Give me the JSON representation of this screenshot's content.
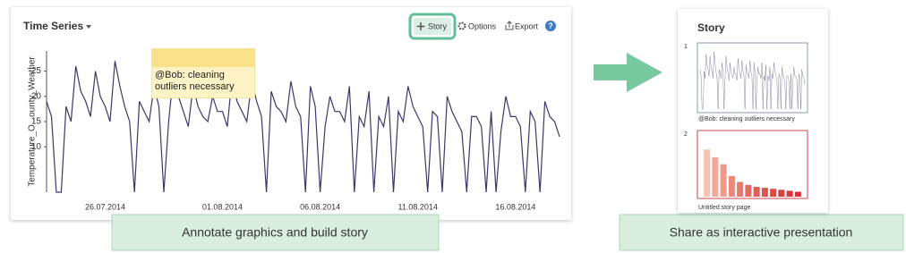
{
  "toolbar": {
    "story": "Story",
    "options": "Options",
    "export": "Export",
    "help": "?"
  },
  "chart_data": [
    {
      "type": "line",
      "title": "Time Series",
      "y_label": "Temperature_O...ounty_Weather",
      "annotation": "@Bob: cleaning outliers necessary",
      "categories": [
        null,
        null,
        null,
        null,
        null,
        null,
        null,
        null,
        null,
        null,
        null,
        null,
        "26.07.2014",
        null,
        null,
        null,
        null,
        null,
        null,
        null,
        null,
        null,
        null,
        null,
        null,
        null,
        null,
        null,
        null,
        null,
        null,
        null,
        null,
        null,
        null,
        null,
        "01.08.2014",
        null,
        null,
        null,
        null,
        null,
        null,
        null,
        null,
        null,
        null,
        null,
        null,
        null,
        null,
        null,
        null,
        null,
        null,
        null,
        "06.08.2014",
        null,
        null,
        null,
        null,
        null,
        null,
        null,
        null,
        null,
        null,
        null,
        null,
        null,
        null,
        null,
        null,
        null,
        null,
        null,
        "11.08.2014",
        null,
        null,
        null,
        null,
        null,
        null,
        null,
        null,
        null,
        null,
        null,
        null,
        null,
        null,
        null,
        null,
        null,
        null,
        null,
        "16.08.2014",
        null,
        null,
        null,
        null,
        null,
        null,
        null,
        null,
        null
      ],
      "values": [
        19,
        16,
        1,
        1,
        18,
        15,
        26,
        21,
        19,
        16,
        25,
        20,
        18,
        15,
        27,
        22,
        18,
        15,
        1,
        19,
        17,
        15,
        22,
        18,
        1,
        15,
        25,
        20,
        17,
        14,
        22,
        18,
        16,
        15,
        20,
        17,
        17,
        14,
        24,
        19,
        17,
        15,
        23,
        19,
        16,
        1,
        21,
        18,
        17,
        15,
        23,
        18,
        16,
        1,
        22,
        18,
        1,
        14,
        20,
        17,
        17,
        15,
        22,
        1,
        16,
        14,
        21,
        1,
        16,
        14,
        20,
        1,
        17,
        15,
        22,
        18,
        16,
        14,
        1,
        17,
        16,
        1,
        20,
        17,
        15,
        13,
        1,
        16,
        16,
        14,
        1,
        17,
        1,
        13,
        20,
        16,
        16,
        14,
        1,
        17,
        15,
        1,
        19,
        16,
        15,
        12
      ],
      "color": "#3b3868",
      "ylim": [
        1,
        29
      ],
      "yticks": [
        10,
        15,
        20,
        25
      ]
    },
    {
      "type": "bar",
      "values": [
        48,
        40,
        33,
        21,
        15,
        12,
        10,
        9,
        8,
        7,
        6,
        5
      ],
      "colors": [
        "#f4c3b4",
        "#f0a898",
        "#ee9a8a",
        "#ea8a7c",
        "#e77a6e",
        "#e46c62",
        "#e05e57",
        "#de534e",
        "#db4846",
        "#d93f40",
        "#d7363b",
        "#d52f37"
      ]
    }
  ],
  "captions": {
    "left": "Annotate graphics and build story",
    "right": "Share as interactive presentation"
  },
  "story": {
    "title": "Story",
    "pages": [
      {
        "number": 1,
        "caption": "@Bob: cleaning outliers necessary"
      },
      {
        "number": 2,
        "caption": "Untitled story page"
      }
    ]
  }
}
